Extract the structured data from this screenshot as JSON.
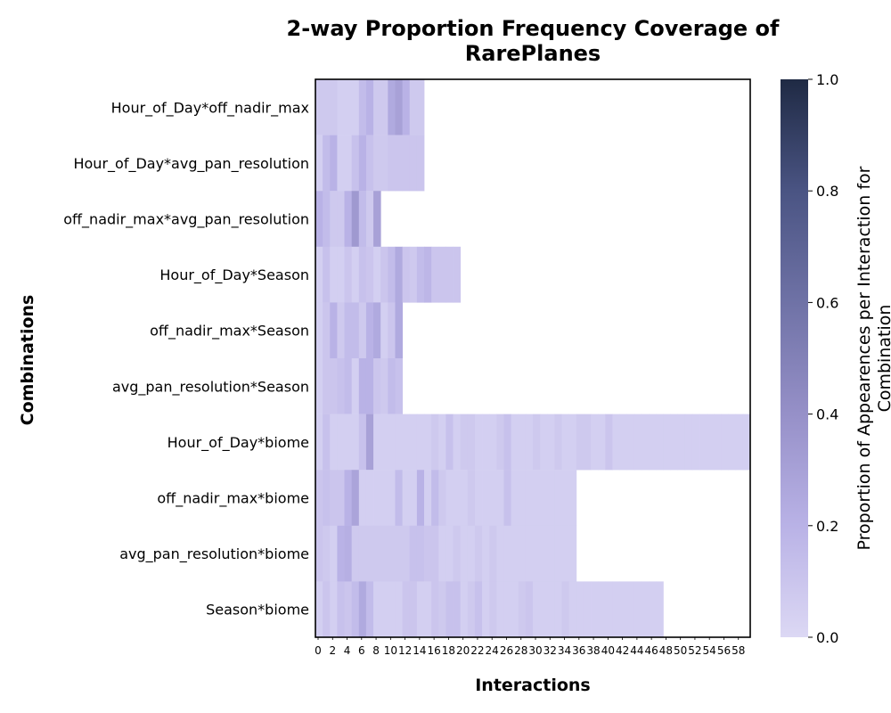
{
  "chart_data": {
    "type": "heatmap",
    "title_lines": [
      "2-way Proportion Frequency Coverage of",
      "RarePlanes"
    ],
    "xlabel": "Interactions",
    "ylabel": "Combinations",
    "colorbar_label_lines": [
      "Proportion of Appearences per Interaction for",
      "Combination"
    ],
    "colorbar_range": [
      0,
      1
    ],
    "colorbar_ticks": [
      "0.0",
      "0.2",
      "0.4",
      "0.6",
      "0.8",
      "1.0"
    ],
    "colormap": [
      "#dcd8f4",
      "#b9b2e6",
      "#9690c8",
      "#6f72a6",
      "#4a5483",
      "#1f2a44"
    ],
    "x_ticks": [
      "0",
      "2",
      "4",
      "6",
      "8",
      "10",
      "12",
      "14",
      "16",
      "18",
      "20",
      "22",
      "24",
      "26",
      "28",
      "30",
      "32",
      "34",
      "36",
      "38",
      "40",
      "42",
      "44",
      "46",
      "48",
      "50",
      "52",
      "54",
      "56",
      "58"
    ],
    "n_interactions": 60,
    "rows": [
      {
        "label": "Hour_of_Day*off_nadir_max",
        "values": [
          0.08,
          0.08,
          0.08,
          0.05,
          0.05,
          0.05,
          0.15,
          0.2,
          0.08,
          0.08,
          0.25,
          0.3,
          0.2,
          0.08,
          0.08
        ]
      },
      {
        "label": "Hour_of_Day*avg_pan_resolution",
        "values": [
          0.05,
          0.15,
          0.2,
          0.05,
          0.05,
          0.12,
          0.2,
          0.12,
          0.08,
          0.08,
          0.1,
          0.1,
          0.1,
          0.1,
          0.1
        ]
      },
      {
        "label": "off_nadir_max*avg_pan_resolution",
        "values": [
          0.2,
          0.15,
          0.08,
          0.08,
          0.2,
          0.35,
          0.15,
          0.08,
          0.3
        ]
      },
      {
        "label": "Hour_of_Day*Season",
        "values": [
          0.05,
          0.12,
          0.05,
          0.05,
          0.1,
          0.05,
          0.12,
          0.1,
          0.05,
          0.1,
          0.15,
          0.25,
          0.1,
          0.08,
          0.15,
          0.18,
          0.1,
          0.1,
          0.1,
          0.1
        ]
      },
      {
        "label": "off_nadir_max*Season",
        "values": [
          0.05,
          0.1,
          0.2,
          0.08,
          0.15,
          0.15,
          0.08,
          0.2,
          0.25,
          0.05,
          0.1,
          0.25
        ]
      },
      {
        "label": "avg_pan_resolution*Season",
        "values": [
          0.05,
          0.1,
          0.1,
          0.12,
          0.15,
          0.05,
          0.2,
          0.2,
          0.1,
          0.08,
          0.15,
          0.12
        ]
      },
      {
        "label": "Hour_of_Day*biome",
        "values": [
          0.05,
          0.12,
          0.05,
          0.05,
          0.05,
          0.05,
          0.12,
          0.3,
          0.05,
          0.05,
          0.05,
          0.05,
          0.05,
          0.05,
          0.05,
          0.05,
          0.08,
          0.05,
          0.12,
          0.05,
          0.08,
          0.08,
          0.05,
          0.05,
          0.05,
          0.08,
          0.12,
          0.05,
          0.05,
          0.05,
          0.08,
          0.05,
          0.05,
          0.08,
          0.05,
          0.05,
          0.08,
          0.08,
          0.05,
          0.05,
          0.1,
          0.05,
          0.05,
          0.05,
          0.05,
          0.05,
          0.05,
          0.05,
          0.05,
          0.05,
          0.05,
          0.05,
          0.05,
          0.05,
          0.05,
          0.05,
          0.05,
          0.05,
          0.05,
          0.05
        ]
      },
      {
        "label": "off_nadir_max*biome",
        "values": [
          0.1,
          0.12,
          0.1,
          0.1,
          0.2,
          0.28,
          0.05,
          0.05,
          0.05,
          0.05,
          0.05,
          0.15,
          0.05,
          0.05,
          0.2,
          0.05,
          0.15,
          0.08,
          0.05,
          0.05,
          0.05,
          0.08,
          0.05,
          0.05,
          0.05,
          0.05,
          0.12,
          0.05,
          0.05,
          0.05,
          0.05,
          0.05,
          0.05,
          0.05,
          0.05,
          0.05
        ]
      },
      {
        "label": "avg_pan_resolution*biome",
        "values": [
          0.1,
          0.08,
          0.05,
          0.2,
          0.22,
          0.08,
          0.08,
          0.08,
          0.08,
          0.08,
          0.08,
          0.08,
          0.08,
          0.12,
          0.12,
          0.1,
          0.1,
          0.05,
          0.05,
          0.08,
          0.05,
          0.05,
          0.08,
          0.05,
          0.08,
          0.05,
          0.05,
          0.05,
          0.05,
          0.05,
          0.05,
          0.05,
          0.05,
          0.05,
          0.05,
          0.05
        ]
      },
      {
        "label": "Season*biome",
        "values": [
          0.05,
          0.1,
          0.05,
          0.12,
          0.1,
          0.15,
          0.25,
          0.15,
          0.05,
          0.05,
          0.05,
          0.05,
          0.1,
          0.1,
          0.05,
          0.05,
          0.1,
          0.08,
          0.12,
          0.12,
          0.05,
          0.08,
          0.12,
          0.05,
          0.08,
          0.05,
          0.05,
          0.05,
          0.08,
          0.1,
          0.05,
          0.05,
          0.05,
          0.05,
          0.08,
          0.05,
          0.05,
          0.05,
          0.05,
          0.05,
          0.05,
          0.05,
          0.05,
          0.05,
          0.05,
          0.05,
          0.05,
          0.05
        ]
      }
    ]
  }
}
